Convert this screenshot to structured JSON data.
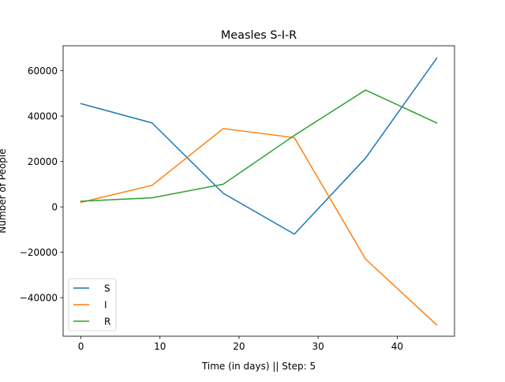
{
  "chart_data": {
    "type": "line",
    "title": "Measles S-I-R",
    "xlabel": "Time (in days) || Step: 5",
    "ylabel": "Number of People",
    "x": [
      0,
      9,
      18,
      27,
      36,
      45
    ],
    "xlim": [
      -2.25,
      47.25
    ],
    "ylim": [
      -57000,
      71000
    ],
    "xticks": [
      0,
      10,
      20,
      30,
      40
    ],
    "yticks": [
      -40000,
      -20000,
      0,
      20000,
      40000,
      60000
    ],
    "grid": false,
    "legend_position": "lower-left",
    "series": [
      {
        "name": "S",
        "color": "#1f77b4",
        "values": [
          45500,
          37000,
          6000,
          -12000,
          21500,
          65500
        ]
      },
      {
        "name": "I",
        "color": "#ff7f0e",
        "values": [
          2000,
          9500,
          34500,
          30500,
          -23000,
          -52000
        ]
      },
      {
        "name": "R",
        "color": "#2ca02c",
        "values": [
          2500,
          4000,
          10000,
          31500,
          51500,
          37000
        ]
      }
    ]
  }
}
